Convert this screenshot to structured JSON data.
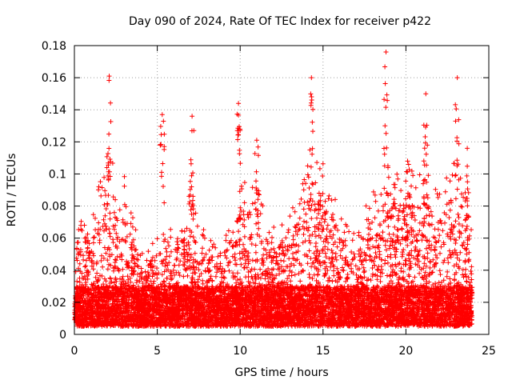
{
  "chart_data": {
    "type": "scatter",
    "title": "Day 090 of 2024, Rate Of TEC Index for receiver p422",
    "xlabel": "GPS time / hours",
    "ylabel": "ROTI / TECUs",
    "xlim": [
      0,
      25
    ],
    "ylim": [
      0,
      0.18
    ],
    "xticks": [
      0,
      5,
      10,
      15,
      20,
      25
    ],
    "xtick_labels": [
      "0",
      "5",
      "10",
      "15",
      "20",
      "25"
    ],
    "yticks": [
      0,
      0.02,
      0.04,
      0.06,
      0.08,
      0.1,
      0.12,
      0.14,
      0.16,
      0.18
    ],
    "ytick_labels": [
      "0",
      "0.02",
      "0.04",
      "0.06",
      "0.08",
      "0.1",
      "0.12",
      "0.14",
      "0.16",
      "0.18"
    ],
    "grid": true,
    "marker": "+",
    "color": "#ff0000",
    "data_range_hours": [
      0,
      24
    ],
    "peaks": [
      {
        "x": 2.1,
        "y": 0.161
      },
      {
        "x": 5.3,
        "y": 0.137
      },
      {
        "x": 7.1,
        "y": 0.136
      },
      {
        "x": 9.9,
        "y": 0.144
      },
      {
        "x": 11.0,
        "y": 0.121
      },
      {
        "x": 14.3,
        "y": 0.16
      },
      {
        "x": 18.8,
        "y": 0.176
      },
      {
        "x": 20.1,
        "y": 0.108
      },
      {
        "x": 21.2,
        "y": 0.15
      },
      {
        "x": 23.1,
        "y": 0.16
      },
      {
        "x": 23.7,
        "y": 0.116
      }
    ],
    "activity_profile": [
      {
        "x": 0.0,
        "level": 0.055
      },
      {
        "x": 1.0,
        "level": 0.06
      },
      {
        "x": 2.0,
        "level": 0.09
      },
      {
        "x": 3.0,
        "level": 0.08
      },
      {
        "x": 4.0,
        "level": 0.04
      },
      {
        "x": 5.0,
        "level": 0.05
      },
      {
        "x": 6.0,
        "level": 0.06
      },
      {
        "x": 7.0,
        "level": 0.07
      },
      {
        "x": 8.0,
        "level": 0.05
      },
      {
        "x": 9.0,
        "level": 0.045
      },
      {
        "x": 10.0,
        "level": 0.08
      },
      {
        "x": 11.0,
        "level": 0.075
      },
      {
        "x": 12.0,
        "level": 0.055
      },
      {
        "x": 13.0,
        "level": 0.06
      },
      {
        "x": 14.0,
        "level": 0.085
      },
      {
        "x": 15.0,
        "level": 0.09
      },
      {
        "x": 16.0,
        "level": 0.06
      },
      {
        "x": 17.0,
        "level": 0.05
      },
      {
        "x": 18.0,
        "level": 0.075
      },
      {
        "x": 19.0,
        "level": 0.09
      },
      {
        "x": 20.0,
        "level": 0.08
      },
      {
        "x": 21.0,
        "level": 0.085
      },
      {
        "x": 22.0,
        "level": 0.07
      },
      {
        "x": 23.0,
        "level": 0.09
      },
      {
        "x": 24.0,
        "level": 0.06
      }
    ],
    "baseline_range": [
      0.005,
      0.03
    ]
  }
}
